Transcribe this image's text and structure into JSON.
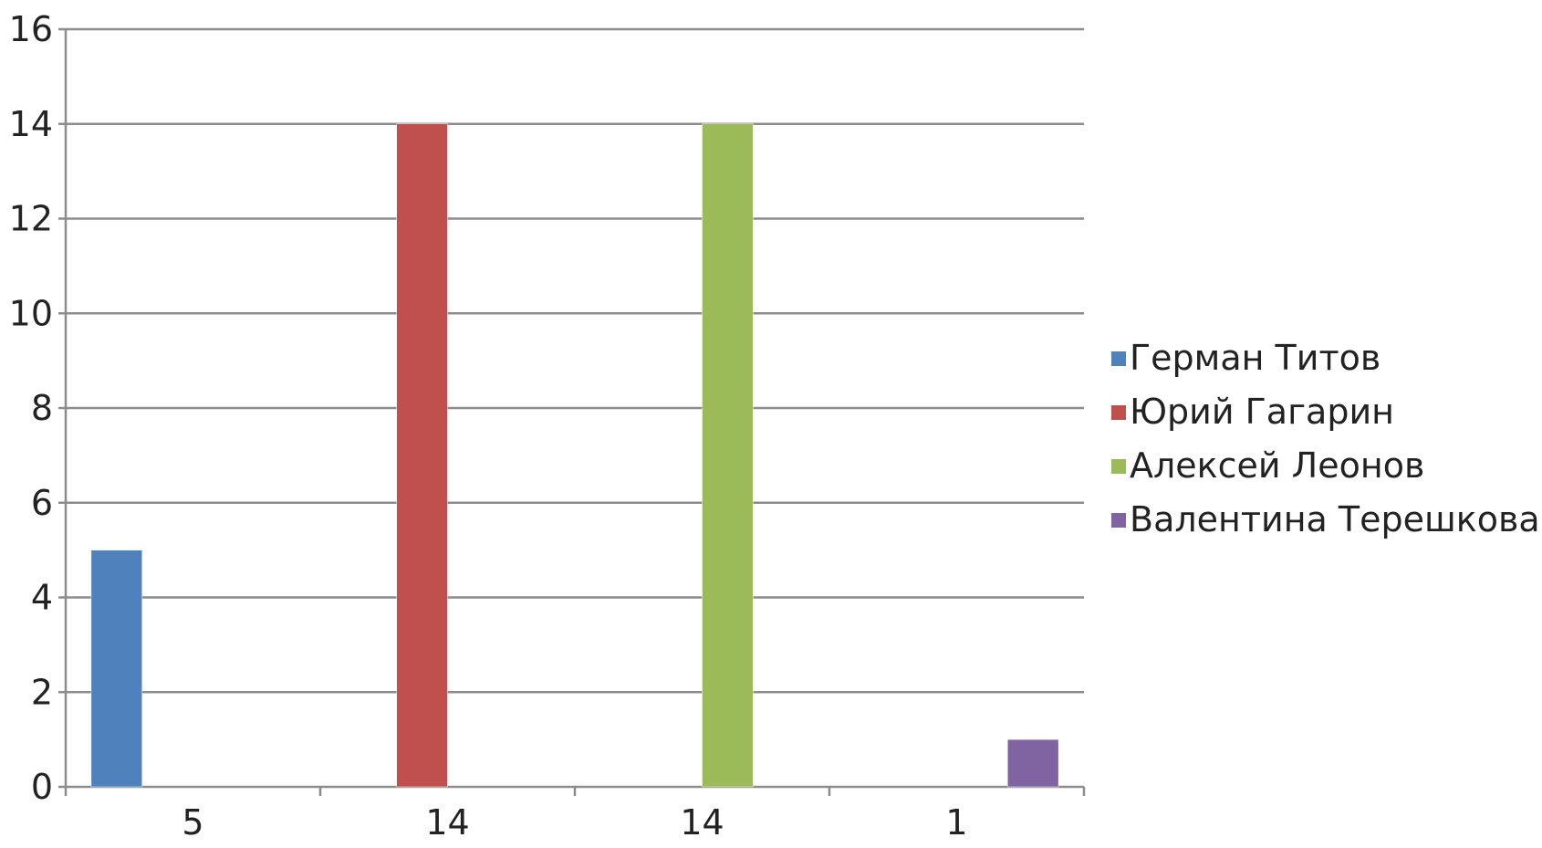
{
  "chart_data": {
    "type": "bar",
    "categories": [
      "5",
      "14",
      "14",
      "1"
    ],
    "series": [
      {
        "name": "Герман Титов",
        "color": "#4F81BD",
        "values": [
          5,
          0,
          0,
          0
        ]
      },
      {
        "name": "Юрий Гагарин",
        "color": "#C0504D",
        "values": [
          0,
          14,
          0,
          0
        ]
      },
      {
        "name": "Алексей Леонов",
        "color": "#9BBB59",
        "values": [
          0,
          0,
          14,
          0
        ]
      },
      {
        "name": "Валентина Терешкова",
        "color": "#8064A2",
        "values": [
          0,
          0,
          0,
          1
        ]
      }
    ],
    "ylim": [
      0,
      16
    ],
    "yticks": [
      0,
      2,
      4,
      6,
      8,
      10,
      12,
      14,
      16
    ],
    "grid": true,
    "legend_position": "right"
  }
}
